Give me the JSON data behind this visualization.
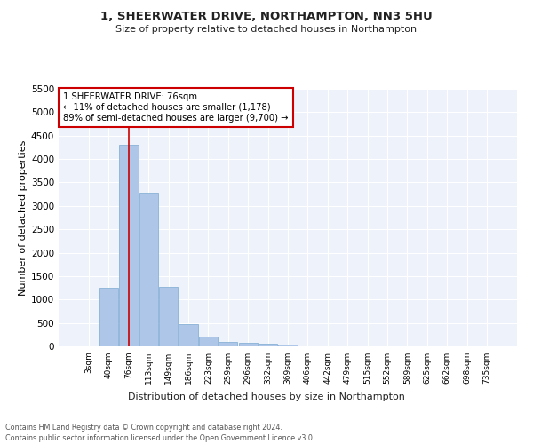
{
  "title": "1, SHEERWATER DRIVE, NORTHAMPTON, NN3 5HU",
  "subtitle": "Size of property relative to detached houses in Northampton",
  "xlabel": "Distribution of detached houses by size in Northampton",
  "ylabel": "Number of detached properties",
  "footnote1": "Contains HM Land Registry data © Crown copyright and database right 2024.",
  "footnote2": "Contains public sector information licensed under the Open Government Licence v3.0.",
  "bar_labels": [
    "3sqm",
    "40sqm",
    "76sqm",
    "113sqm",
    "149sqm",
    "186sqm",
    "223sqm",
    "259sqm",
    "296sqm",
    "332sqm",
    "369sqm",
    "406sqm",
    "442sqm",
    "479sqm",
    "515sqm",
    "552sqm",
    "589sqm",
    "625sqm",
    "662sqm",
    "698sqm",
    "735sqm"
  ],
  "bar_values": [
    0,
    1250,
    4300,
    3280,
    1270,
    480,
    200,
    100,
    80,
    50,
    40,
    0,
    0,
    0,
    0,
    0,
    0,
    0,
    0,
    0,
    0
  ],
  "property_line_x": 2,
  "annotation_text": "1 SHEERWATER DRIVE: 76sqm\n← 11% of detached houses are smaller (1,178)\n89% of semi-detached houses are larger (9,700) →",
  "bar_color": "#aec6e8",
  "bar_edge_color": "#7aaad0",
  "line_color": "#cc0000",
  "annotation_box_color": "#cc0000",
  "bg_color": "#eef2fb",
  "ylim": [
    0,
    5500
  ],
  "yticks": [
    0,
    500,
    1000,
    1500,
    2000,
    2500,
    3000,
    3500,
    4000,
    4500,
    5000,
    5500
  ],
  "title_fontsize": 9.5,
  "subtitle_fontsize": 8,
  "ylabel_fontsize": 8,
  "xlabel_fontsize": 8,
  "ytick_fontsize": 7.5,
  "xtick_fontsize": 6.5,
  "footnote_fontsize": 5.8
}
